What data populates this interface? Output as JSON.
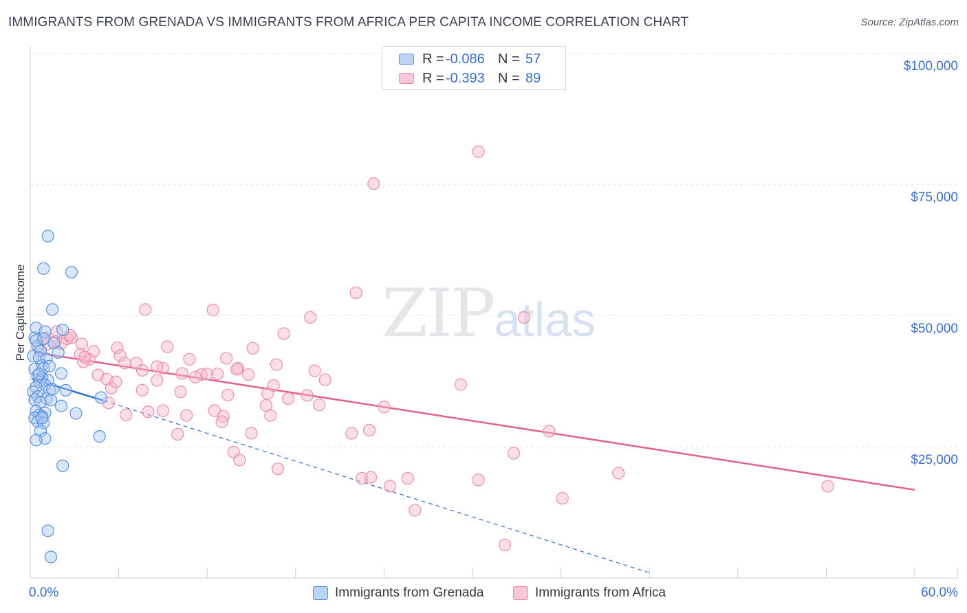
{
  "header": {
    "title": "IMMIGRANTS FROM GRENADA VS IMMIGRANTS FROM AFRICA PER CAPITA INCOME CORRELATION CHART",
    "source": "Source: ZipAtlas.com"
  },
  "legend": {
    "r_label": "R =",
    "n_label": "N =",
    "series": [
      {
        "r": "-0.086",
        "n": "57"
      },
      {
        "r": "-0.393",
        "n": "89"
      }
    ]
  },
  "watermark": {
    "zip": "ZIP",
    "atlas": "atlas"
  },
  "colors": {
    "grenada_fill": "#a9c8f2",
    "grenada_stroke": "#5b90dd",
    "grenada_line": "#2f6fd0",
    "africa_fill": "#f7b9cd",
    "africa_stroke": "#ec8fae",
    "africa_line": "#e2608f",
    "grid": "#e3e5e9",
    "axis_text": "#3a6fc9"
  },
  "chart_data": {
    "type": "scatter",
    "title": "IMMIGRANTS FROM GRENADA VS IMMIGRANTS FROM AFRICA PER CAPITA INCOME CORRELATION CHART",
    "xlabel": "",
    "ylabel": "Per Capita Income",
    "xlim": [
      0,
      60
    ],
    "ylim": [
      0,
      100000
    ],
    "x_tick_labels": [
      "0.0%",
      "60.0%"
    ],
    "y_ticks": [
      25000,
      50000,
      75000,
      100000
    ],
    "y_tick_labels": [
      "$25,000",
      "$50,000",
      "$75,000",
      "$100,000"
    ],
    "legend_position": "top-center",
    "series": [
      {
        "name": "Immigrants from Grenada",
        "r": -0.086,
        "n": 57,
        "trend_solid": [
          [
            0.1,
            38000
          ],
          [
            5.0,
            33800
          ]
        ],
        "trend_dashed": [
          [
            5.0,
            33800
          ],
          [
            42.0,
            1000
          ]
        ],
        "points": [
          [
            1.2,
            65200
          ],
          [
            0.9,
            59000
          ],
          [
            2.8,
            58300
          ],
          [
            1.5,
            51200
          ],
          [
            0.4,
            47700
          ],
          [
            2.2,
            47300
          ],
          [
            0.3,
            45800
          ],
          [
            1.0,
            47000
          ],
          [
            1.6,
            44800
          ],
          [
            0.5,
            44200
          ],
          [
            0.7,
            43300
          ],
          [
            1.9,
            43000
          ],
          [
            0.2,
            42300
          ],
          [
            0.6,
            42000
          ],
          [
            1.1,
            41800
          ],
          [
            0.8,
            40500
          ],
          [
            0.3,
            39800
          ],
          [
            0.9,
            40000
          ],
          [
            2.1,
            39000
          ],
          [
            0.5,
            38600
          ],
          [
            0.8,
            38200
          ],
          [
            0.7,
            37700
          ],
          [
            1.2,
            37700
          ],
          [
            0.6,
            37400
          ],
          [
            1.0,
            36800
          ],
          [
            0.4,
            36400
          ],
          [
            1.3,
            35800
          ],
          [
            2.4,
            35800
          ],
          [
            0.2,
            35500
          ],
          [
            0.5,
            34600
          ],
          [
            1.1,
            34200
          ],
          [
            0.3,
            34000
          ],
          [
            0.7,
            33500
          ],
          [
            1.4,
            33900
          ],
          [
            2.1,
            32800
          ],
          [
            0.4,
            31800
          ],
          [
            1.0,
            31500
          ],
          [
            0.6,
            31100
          ],
          [
            3.1,
            31400
          ],
          [
            0.8,
            30800
          ],
          [
            0.3,
            30500
          ],
          [
            0.5,
            29800
          ],
          [
            0.9,
            29600
          ],
          [
            0.7,
            28000
          ],
          [
            1.0,
            26600
          ],
          [
            0.4,
            26300
          ],
          [
            4.8,
            34400
          ],
          [
            4.7,
            27000
          ],
          [
            2.2,
            21400
          ],
          [
            1.2,
            9000
          ],
          [
            1.4,
            4000
          ],
          [
            0.4,
            45300
          ],
          [
            0.9,
            45600
          ],
          [
            1.3,
            40400
          ],
          [
            0.6,
            38900
          ],
          [
            1.5,
            36000
          ],
          [
            0.8,
            30500
          ]
        ]
      },
      {
        "name": "Immigrants from Africa",
        "r": -0.393,
        "n": 89,
        "trend_solid": [
          [
            0.3,
            43000
          ],
          [
            60.0,
            16800
          ]
        ],
        "points": [
          [
            30.4,
            81300
          ],
          [
            23.3,
            75200
          ],
          [
            22.1,
            54400
          ],
          [
            19.0,
            49700
          ],
          [
            7.8,
            51200
          ],
          [
            12.4,
            51100
          ],
          [
            33.5,
            49700
          ],
          [
            1.8,
            47000
          ],
          [
            2.5,
            45600
          ],
          [
            1.0,
            45800
          ],
          [
            1.7,
            45100
          ],
          [
            2.1,
            44700
          ],
          [
            2.8,
            45800
          ],
          [
            3.5,
            44600
          ],
          [
            0.6,
            43800
          ],
          [
            5.9,
            43900
          ],
          [
            9.3,
            44100
          ],
          [
            15.1,
            43800
          ],
          [
            17.2,
            46600
          ],
          [
            4.3,
            43200
          ],
          [
            6.1,
            42400
          ],
          [
            3.4,
            42700
          ],
          [
            4.0,
            41700
          ],
          [
            10.8,
            41700
          ],
          [
            13.3,
            41900
          ],
          [
            7.2,
            41000
          ],
          [
            3.6,
            41200
          ],
          [
            6.4,
            41000
          ],
          [
            7.6,
            39600
          ],
          [
            9.0,
            40000
          ],
          [
            8.6,
            40300
          ],
          [
            11.6,
            38800
          ],
          [
            14.1,
            40000
          ],
          [
            12.0,
            38900
          ],
          [
            12.7,
            38900
          ],
          [
            14.8,
            38800
          ],
          [
            16.7,
            40700
          ],
          [
            19.3,
            39500
          ],
          [
            10.3,
            39000
          ],
          [
            4.6,
            38700
          ],
          [
            5.2,
            37900
          ],
          [
            20.0,
            37800
          ],
          [
            8.6,
            37700
          ],
          [
            11.2,
            38300
          ],
          [
            14.0,
            39800
          ],
          [
            16.5,
            36700
          ],
          [
            5.5,
            36200
          ],
          [
            7.6,
            35800
          ],
          [
            10.2,
            35500
          ],
          [
            13.4,
            34900
          ],
          [
            16.1,
            35200
          ],
          [
            18.8,
            34800
          ],
          [
            17.5,
            34200
          ],
          [
            19.6,
            33000
          ],
          [
            5.3,
            33400
          ],
          [
            16.0,
            32900
          ],
          [
            9.0,
            31900
          ],
          [
            12.5,
            31900
          ],
          [
            24.0,
            32600
          ],
          [
            8.0,
            31700
          ],
          [
            6.5,
            31100
          ],
          [
            10.6,
            31000
          ],
          [
            13.1,
            30800
          ],
          [
            16.3,
            31000
          ],
          [
            13.0,
            29800
          ],
          [
            15.0,
            27600
          ],
          [
            10.0,
            27400
          ],
          [
            21.8,
            27600
          ],
          [
            23.0,
            28200
          ],
          [
            29.2,
            36900
          ],
          [
            35.2,
            28000
          ],
          [
            32.8,
            23800
          ],
          [
            13.8,
            24000
          ],
          [
            14.2,
            22500
          ],
          [
            16.8,
            20800
          ],
          [
            22.5,
            19000
          ],
          [
            23.1,
            19200
          ],
          [
            24.4,
            17500
          ],
          [
            25.6,
            19000
          ],
          [
            26.1,
            12900
          ],
          [
            30.4,
            18700
          ],
          [
            36.1,
            15200
          ],
          [
            39.9,
            20000
          ],
          [
            54.1,
            17500
          ],
          [
            32.2,
            6300
          ],
          [
            3.7,
            42100
          ],
          [
            2.7,
            46300
          ],
          [
            1.2,
            44600
          ],
          [
            5.8,
            37400
          ]
        ]
      }
    ]
  },
  "bottom_legend": [
    "Immigrants from Grenada",
    "Immigrants from Africa"
  ]
}
